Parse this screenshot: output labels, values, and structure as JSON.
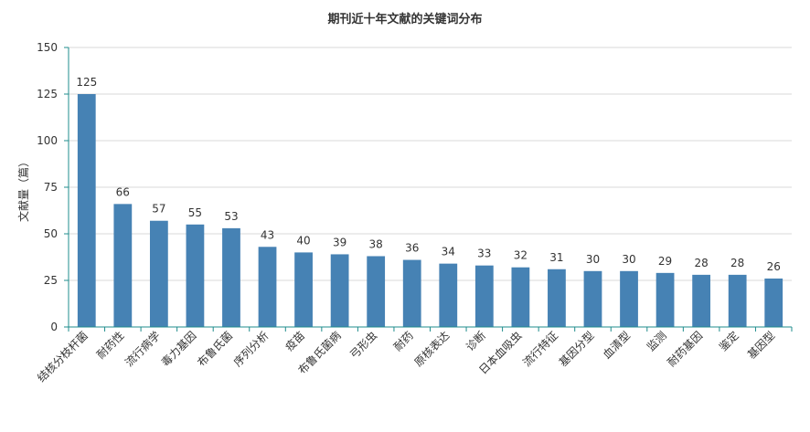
{
  "chart_data": {
    "type": "bar",
    "title": "期刊近十年文献的关键词分布",
    "xlabel": "",
    "ylabel": "文献量（篇）",
    "ylim": [
      0,
      150
    ],
    "yticks": [
      0,
      25,
      50,
      75,
      100,
      125,
      150
    ],
    "grid": true,
    "legend": "none",
    "bar_color": "#4682b4",
    "categories": [
      "结核分枝杆菌",
      "耐药性",
      "流行病学",
      "毒力基因",
      "布鲁氏菌",
      "序列分析",
      "疫苗",
      "布鲁氏菌病",
      "弓形虫",
      "耐药",
      "原核表达",
      "诊断",
      "日本血吸虫",
      "流行特征",
      "基因分型",
      "血清型",
      "监测",
      "耐药基因",
      "鉴定",
      "基因型"
    ],
    "values": [
      125,
      66,
      57,
      55,
      53,
      43,
      40,
      39,
      38,
      36,
      34,
      33,
      32,
      31,
      30,
      30,
      29,
      28,
      28,
      26
    ]
  }
}
